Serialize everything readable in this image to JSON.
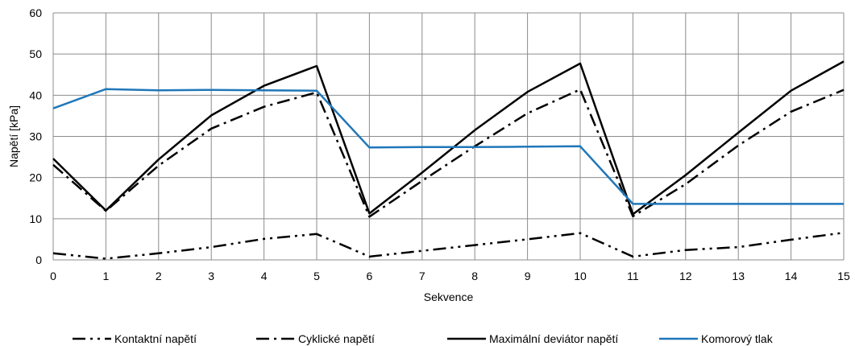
{
  "chart_data": {
    "type": "line",
    "title": "",
    "xlabel": "Sekvence",
    "ylabel": "Napětí [kPa]",
    "xlim": [
      0,
      15
    ],
    "ylim": [
      0,
      60
    ],
    "x_ticks": [
      0,
      1,
      2,
      3,
      4,
      5,
      6,
      7,
      8,
      9,
      10,
      11,
      12,
      13,
      14,
      15
    ],
    "y_ticks": [
      0,
      10,
      20,
      30,
      40,
      50,
      60
    ],
    "grid": true,
    "legend_position": "bottom",
    "x": [
      0,
      1,
      2,
      3,
      4,
      5,
      6,
      7,
      8,
      9,
      10,
      11,
      12,
      13,
      14,
      15
    ],
    "series": [
      {
        "name": "Kontaktní napětí",
        "color": "#000000",
        "dash": "long-dash-dot-dot",
        "values": [
          1.6,
          0.3,
          1.6,
          3.1,
          5.1,
          6.3,
          0.8,
          2.2,
          3.6,
          5.0,
          6.5,
          0.8,
          2.4,
          3.1,
          4.9,
          6.6
        ]
      },
      {
        "name": "Cyklické napětí",
        "color": "#000000",
        "dash": "long-dash-dot",
        "values": [
          23.1,
          11.9,
          22.9,
          31.9,
          37.2,
          40.7,
          10.5,
          19.2,
          27.6,
          35.6,
          41.4,
          10.6,
          18.4,
          27.8,
          36.0,
          41.3
        ]
      },
      {
        "name": "Maximální deviátor napětí",
        "color": "#000000",
        "dash": "solid",
        "values": [
          24.6,
          12.0,
          24.4,
          35.1,
          42.3,
          47.1,
          11.3,
          21.2,
          31.5,
          40.8,
          47.7,
          11.1,
          20.6,
          30.9,
          41.1,
          48.2
        ]
      },
      {
        "name": "Komorový tlak",
        "color": "#1F77B9",
        "dash": "solid",
        "values": [
          36.8,
          41.5,
          41.2,
          41.3,
          41.2,
          41.1,
          27.3,
          27.4,
          27.4,
          27.5,
          27.6,
          13.6,
          13.6,
          13.6,
          13.6,
          13.6
        ]
      }
    ]
  }
}
